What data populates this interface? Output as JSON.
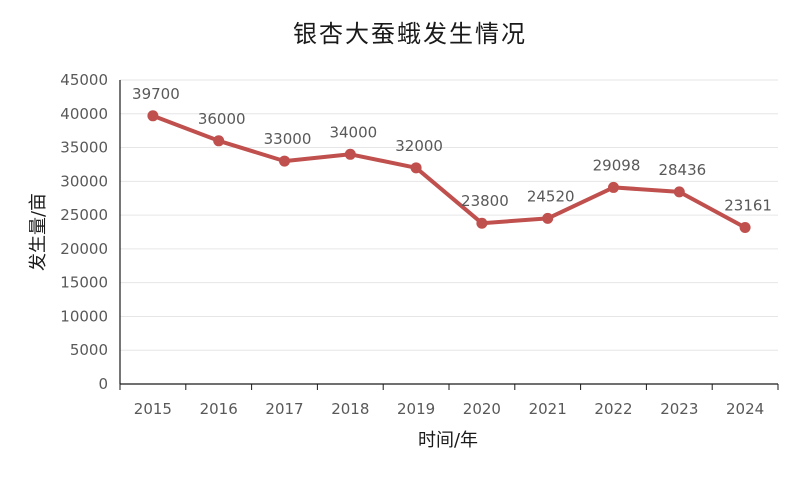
{
  "chart_data": {
    "type": "line",
    "title": "银杏大蚕蛾发生情况",
    "xlabel": "时间/年",
    "ylabel": "发生量/亩",
    "categories": [
      "2015",
      "2016",
      "2017",
      "2018",
      "2019",
      "2020",
      "2021",
      "2022",
      "2023",
      "2024"
    ],
    "series": [
      {
        "values": [
          39700,
          36000,
          33000,
          34000,
          32000,
          23800,
          24520,
          29098,
          28436,
          23161
        ]
      }
    ],
    "data_labels": [
      "39700",
      "36000",
      "33000",
      "34000",
      "32000",
      "23800",
      "24520",
      "29098",
      "28436",
      "23161"
    ],
    "yticks": [
      "0",
      "5000",
      "10000",
      "15000",
      "20000",
      "25000",
      "30000",
      "35000",
      "40000",
      "45000"
    ],
    "ylim": [
      0,
      45000
    ],
    "grid": true,
    "legend": "none",
    "colors": {
      "line": "#c0504d",
      "grid": "#e6e6e6",
      "axis": "#1a1a1a"
    }
  }
}
